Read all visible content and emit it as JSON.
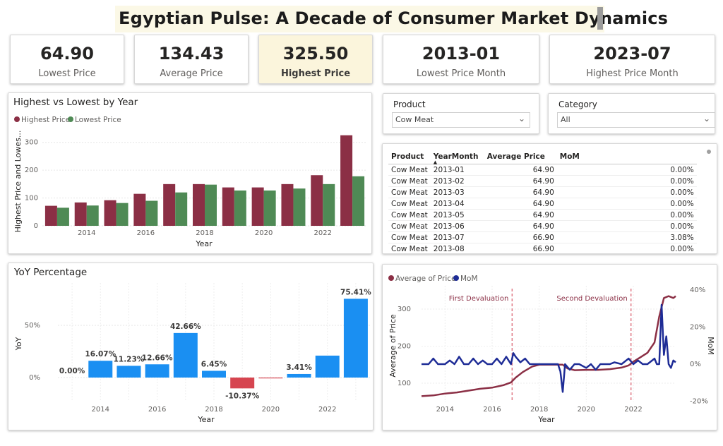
{
  "title": "Egyptian Pulse: A Decade of Consumer Market Dynamics",
  "kpis": [
    {
      "value": "64.90",
      "label": "Lowest Price"
    },
    {
      "value": "134.43",
      "label": "Average Price"
    },
    {
      "value": "325.50",
      "label": "Highest Price"
    },
    {
      "value": "2013-01",
      "label": "Lowest Price Month"
    },
    {
      "value": "2023-07",
      "label": "Highest Price Month"
    }
  ],
  "colors": {
    "highest": "#8b2f45",
    "lowest": "#4f8a55",
    "yoy_pos": "#1a8ff2",
    "yoy_neg": "#d64550",
    "mom": "#1e2c96",
    "avg": "#8b2f45",
    "devaluation": "#e07a86"
  },
  "hl_chart": {
    "title": "Highest vs Lowest by Year",
    "legend": [
      "Highest Price",
      "Lowest Price"
    ],
    "ylabel": "Highest Price and Lowes...",
    "xlabel": "Year"
  },
  "slicers": {
    "product": {
      "title": "Product",
      "value": "Cow Meat"
    },
    "category": {
      "title": "Category",
      "value": "All"
    }
  },
  "table": {
    "headers": [
      "Product",
      "YearMonth",
      "Average Price",
      "MoM"
    ],
    "rows": [
      [
        "Cow Meat",
        "2013-01",
        "64.90",
        "0.00%"
      ],
      [
        "Cow Meat",
        "2013-02",
        "64.90",
        "0.00%"
      ],
      [
        "Cow Meat",
        "2013-03",
        "64.90",
        "0.00%"
      ],
      [
        "Cow Meat",
        "2013-04",
        "64.90",
        "0.00%"
      ],
      [
        "Cow Meat",
        "2013-05",
        "64.90",
        "0.00%"
      ],
      [
        "Cow Meat",
        "2013-06",
        "64.90",
        "0.00%"
      ],
      [
        "Cow Meat",
        "2013-07",
        "66.90",
        "3.08%"
      ],
      [
        "Cow Meat",
        "2013-08",
        "66.90",
        "0.00%"
      ]
    ]
  },
  "yoy_chart": {
    "title": "YoY Percentage",
    "ylabel": "YoY",
    "xlabel": "Year"
  },
  "trend_chart": {
    "legend": [
      "Average of Price",
      "MoM"
    ],
    "ylabel": "Average of Price",
    "y2label": "MoM",
    "xlabel": "Year",
    "annotations": [
      "First Devaluation",
      "Second Devaluation"
    ]
  },
  "chart_data": [
    {
      "type": "bar",
      "title": "Highest vs Lowest by Year",
      "categories": [
        2013,
        2014,
        2015,
        2016,
        2017,
        2018,
        2019,
        2020,
        2021,
        2022,
        2023
      ],
      "tick_labels": [
        "2014",
        "2016",
        "2018",
        "2020",
        "2022"
      ],
      "series": [
        {
          "name": "Highest Price",
          "values": [
            72,
            84,
            92,
            115,
            150,
            150,
            138,
            138,
            150,
            182,
            325.5
          ]
        },
        {
          "name": "Lowest Price",
          "values": [
            65,
            73,
            82,
            90,
            120,
            148,
            127,
            127,
            134,
            150,
            178
          ]
        }
      ],
      "xlabel": "Year",
      "ylabel": "Highest Price and Lowes...",
      "ylim": [
        0,
        350
      ],
      "yticks": [
        0,
        100,
        200,
        300
      ]
    },
    {
      "type": "bar",
      "title": "YoY Percentage",
      "categories": [
        2013,
        2014,
        2015,
        2016,
        2017,
        2018,
        2019,
        2020,
        2021,
        2022,
        2023
      ],
      "tick_labels": [
        "2014",
        "2016",
        "2018",
        "2020",
        "2022"
      ],
      "values": [
        0.0,
        16.07,
        11.23,
        12.66,
        42.66,
        6.45,
        -10.37,
        -0.8,
        3.41,
        21,
        75.41
      ],
      "data_labels": [
        "0.00%",
        "16.07%",
        "11.23%",
        "12.66%",
        "42.66%",
        "6.45%",
        "-10.37%",
        "",
        "3.41%",
        "",
        "75.41%"
      ],
      "xlabel": "Year",
      "ylabel": "YoY",
      "yticks": [
        "0%",
        "50%"
      ]
    },
    {
      "type": "line",
      "x_range": [
        2013,
        2023.8
      ],
      "tick_labels": [
        "2014",
        "2016",
        "2018",
        "2020",
        "2022"
      ],
      "y_ticks": [
        100,
        200,
        300
      ],
      "y2_ticks": [
        "-20%",
        "0%",
        "20%",
        "40%"
      ],
      "series": [
        {
          "name": "Average of Price",
          "axis": "left",
          "points": [
            [
              2013,
              65
            ],
            [
              2013.5,
              67
            ],
            [
              2014,
              72
            ],
            [
              2014.5,
              75
            ],
            [
              2015,
              80
            ],
            [
              2015.5,
              85
            ],
            [
              2016,
              88
            ],
            [
              2016.5,
              95
            ],
            [
              2016.8,
              102
            ],
            [
              2017,
              115
            ],
            [
              2017.3,
              130
            ],
            [
              2017.7,
              145
            ],
            [
              2018,
              150
            ],
            [
              2018.5,
              150
            ],
            [
              2019,
              150
            ],
            [
              2019.2,
              140
            ],
            [
              2019.5,
              135
            ],
            [
              2020,
              136
            ],
            [
              2020.5,
              136
            ],
            [
              2021,
              138
            ],
            [
              2021.5,
              142
            ],
            [
              2021.8,
              148
            ],
            [
              2022,
              158
            ],
            [
              2022.3,
              170
            ],
            [
              2022.6,
              182
            ],
            [
              2022.9,
              210
            ],
            [
              2023.1,
              280
            ],
            [
              2023.3,
              330
            ],
            [
              2023.5,
              335
            ],
            [
              2023.7,
              330
            ],
            [
              2023.8,
              335
            ]
          ]
        },
        {
          "name": "MoM",
          "axis": "right",
          "points": [
            [
              2013,
              0
            ],
            [
              2013.3,
              0
            ],
            [
              2013.5,
              3
            ],
            [
              2013.7,
              0
            ],
            [
              2014,
              0
            ],
            [
              2014.2,
              2
            ],
            [
              2014.4,
              0
            ],
            [
              2014.6,
              4
            ],
            [
              2014.8,
              0
            ],
            [
              2015,
              0
            ],
            [
              2015.2,
              3
            ],
            [
              2015.4,
              0
            ],
            [
              2015.6,
              2
            ],
            [
              2015.8,
              0
            ],
            [
              2016,
              0
            ],
            [
              2016.2,
              3
            ],
            [
              2016.4,
              0
            ],
            [
              2016.6,
              4
            ],
            [
              2016.8,
              0
            ],
            [
              2016.9,
              6
            ],
            [
              2017,
              4
            ],
            [
              2017.2,
              1
            ],
            [
              2017.4,
              3
            ],
            [
              2017.6,
              0
            ],
            [
              2018,
              0
            ],
            [
              2018.5,
              0
            ],
            [
              2018.8,
              0
            ],
            [
              2018.9,
              -4
            ],
            [
              2019,
              -15
            ],
            [
              2019.1,
              0
            ],
            [
              2019.3,
              -3
            ],
            [
              2019.5,
              0
            ],
            [
              2019.7,
              0
            ],
            [
              2020,
              -2
            ],
            [
              2020.2,
              0
            ],
            [
              2020.4,
              -3
            ],
            [
              2020.6,
              0
            ],
            [
              2021,
              0
            ],
            [
              2021.2,
              1
            ],
            [
              2021.5,
              0
            ],
            [
              2021.8,
              3
            ],
            [
              2022,
              0
            ],
            [
              2022.2,
              2
            ],
            [
              2022.4,
              0
            ],
            [
              2022.6,
              0
            ],
            [
              2022.9,
              3
            ],
            [
              2023.0,
              0
            ],
            [
              2023.1,
              0
            ],
            [
              2023.2,
              32
            ],
            [
              2023.3,
              5
            ],
            [
              2023.4,
              15
            ],
            [
              2023.5,
              0
            ],
            [
              2023.6,
              -2
            ],
            [
              2023.7,
              2
            ],
            [
              2023.8,
              1
            ]
          ]
        }
      ],
      "xlabel": "Year",
      "ylabel": "Average of Price",
      "y2label": "MoM",
      "annotations": [
        {
          "label": "First Devaluation",
          "x": 2016.85
        },
        {
          "label": "Second Devaluation",
          "x": 2021.9
        }
      ]
    }
  ]
}
